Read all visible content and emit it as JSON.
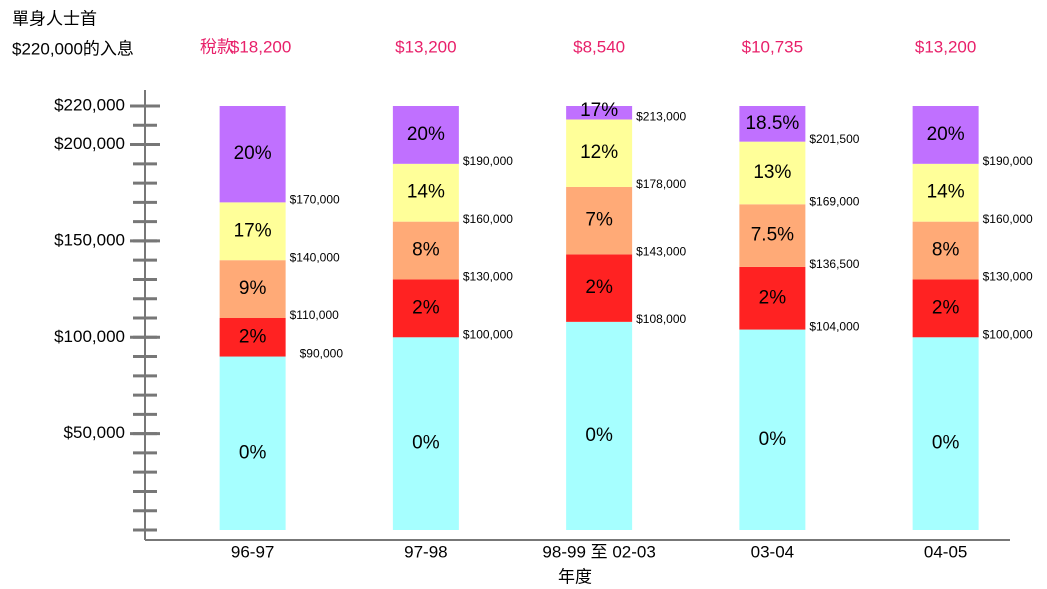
{
  "chart_data": {
    "type": "bar",
    "stacked": true,
    "ylabel": [
      "單身人士首",
      "$220,000的入息"
    ],
    "xlabel": "年度",
    "tax_prefix": "稅款",
    "tax": [
      "$18,200",
      "$13,200",
      "$8,540",
      "$10,735",
      "$13,200"
    ],
    "categories": [
      "96-97",
      "97-98",
      "98-99 至 02-03",
      "03-04",
      "04-05"
    ],
    "series": [
      {
        "color": "#a6ffff",
        "values": [
          90000,
          100000,
          108000,
          104000,
          100000
        ],
        "rate_labels": [
          "0%",
          "0%",
          "0%",
          "0%",
          "0%"
        ]
      },
      {
        "color": "#ff2222",
        "values": [
          20000,
          30000,
          35000,
          32500,
          30000
        ],
        "rate_labels": [
          "2%",
          "2%",
          "2%",
          "2%",
          "2%"
        ]
      },
      {
        "color": "#ffaa77",
        "values": [
          30000,
          30000,
          35000,
          32500,
          30000
        ],
        "rate_labels": [
          "9%",
          "8%",
          "7%",
          "7.5%",
          "8%"
        ]
      },
      {
        "color": "#ffff99",
        "values": [
          30000,
          30000,
          35000,
          32500,
          30000
        ],
        "rate_labels": [
          "17%",
          "14%",
          "12%",
          "13%",
          "14%"
        ]
      },
      {
        "color": "#c070ff",
        "values": [
          50000,
          30000,
          7000,
          18500,
          30000
        ],
        "rate_labels": [
          "20%",
          "20%",
          "17%",
          "18.5%",
          "20%"
        ]
      }
    ],
    "threshold_labels": [
      [
        "$90,000",
        "$110,000",
        "$140,000",
        "$170,000"
      ],
      [
        "$100,000",
        "$130,000",
        "$160,000",
        "$190,000"
      ],
      [
        "$108,000",
        "$143,000",
        "$178,000",
        "$213,000"
      ],
      [
        "$104,000",
        "$136,500",
        "$169,000",
        "$201,500"
      ],
      [
        "$100,000",
        "$130,000",
        "$160,000",
        "$190,000"
      ]
    ],
    "ylim": [
      0,
      220000
    ],
    "yticks": [
      {
        "value": 50000,
        "label": "$50,000"
      },
      {
        "value": 100000,
        "label": "$100,000"
      },
      {
        "value": 150000,
        "label": "$150,000"
      },
      {
        "value": 200000,
        "label": "$200,000"
      },
      {
        "value": 220000,
        "label": "$220,000"
      }
    ],
    "yminorticks": [
      0,
      10000,
      20000,
      30000,
      40000,
      50000,
      60000,
      70000,
      80000,
      90000,
      100000,
      110000,
      120000,
      130000,
      140000,
      150000,
      160000,
      170000,
      180000,
      190000,
      200000,
      210000,
      220000
    ]
  }
}
